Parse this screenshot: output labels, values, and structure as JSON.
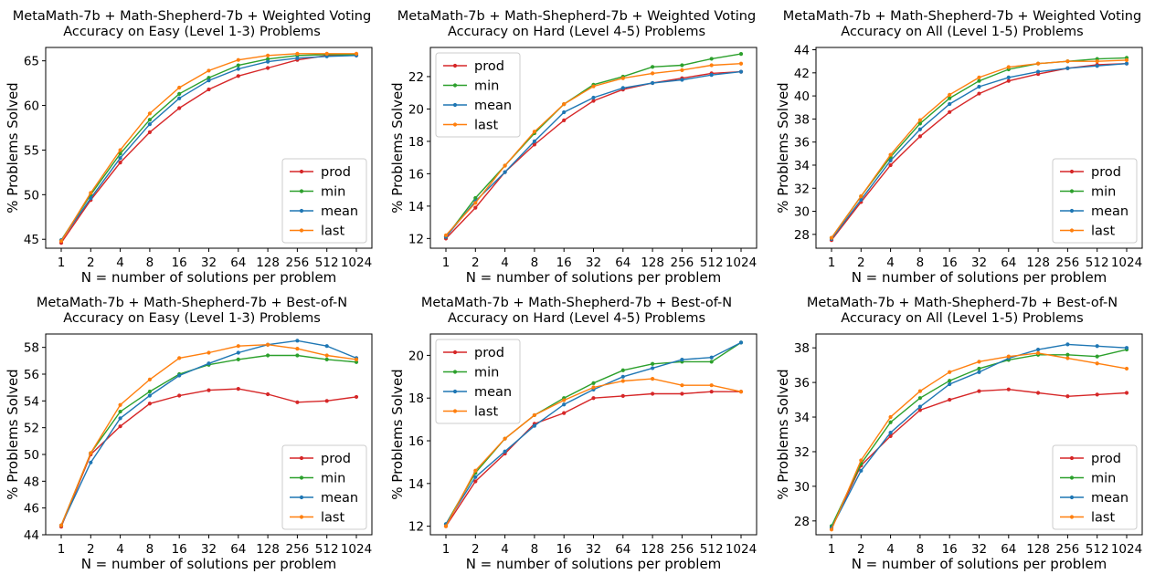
{
  "colors": {
    "prod": "#d62728",
    "min": "#2ca02c",
    "mean": "#1f77b4",
    "last": "#ff7f0e"
  },
  "chart_data": [
    {
      "type": "line",
      "title": [
        "MetaMath-7b + Math-Shepherd-7b + Weighted Voting",
        "Accuracy on Easy (Level 1-3) Problems"
      ],
      "xlabel": "N = number of solutions per problem",
      "ylabel": "% Problems Solved",
      "x": [
        "1",
        "2",
        "4",
        "8",
        "16",
        "32",
        "64",
        "128",
        "256",
        "512",
        "1024"
      ],
      "ylim": [
        44,
        66.5
      ],
      "yticks": [
        45,
        50,
        55,
        60,
        65
      ],
      "legend": "lower right",
      "series": [
        {
          "name": "prod",
          "color": "#d62728",
          "values": [
            44.6,
            49.4,
            53.6,
            57.0,
            59.7,
            61.8,
            63.3,
            64.2,
            65.1,
            65.6,
            65.6
          ]
        },
        {
          "name": "min",
          "color": "#2ca02c",
          "values": [
            44.9,
            50.0,
            54.6,
            58.4,
            61.3,
            63.1,
            64.5,
            65.2,
            65.6,
            65.7,
            65.7
          ]
        },
        {
          "name": "mean",
          "color": "#1f77b4",
          "values": [
            44.9,
            49.6,
            54.1,
            57.9,
            60.8,
            62.8,
            64.1,
            64.9,
            65.3,
            65.5,
            65.6
          ]
        },
        {
          "name": "last",
          "color": "#ff7f0e",
          "values": [
            44.8,
            50.2,
            55.0,
            59.1,
            62.0,
            63.9,
            65.1,
            65.6,
            65.8,
            65.8,
            65.8
          ]
        }
      ]
    },
    {
      "type": "line",
      "title": [
        "MetaMath-7b + Math-Shepherd-7b + Weighted Voting",
        "Accuracy on Hard (Level 4-5) Problems"
      ],
      "xlabel": "N = number of solutions per problem",
      "ylabel": "% Problems Solved",
      "x": [
        "1",
        "2",
        "4",
        "8",
        "16",
        "32",
        "64",
        "128",
        "256",
        "512",
        "1024"
      ],
      "ylim": [
        11.4,
        23.8
      ],
      "yticks": [
        12,
        14,
        16,
        18,
        20,
        22
      ],
      "legend": "upper left",
      "series": [
        {
          "name": "prod",
          "color": "#d62728",
          "values": [
            12.0,
            13.9,
            16.1,
            17.8,
            19.3,
            20.5,
            21.2,
            21.6,
            21.9,
            22.2,
            22.3
          ]
        },
        {
          "name": "min",
          "color": "#2ca02c",
          "values": [
            12.1,
            14.5,
            16.5,
            18.5,
            20.3,
            21.5,
            22.0,
            22.6,
            22.7,
            23.1,
            23.4
          ]
        },
        {
          "name": "mean",
          "color": "#1f77b4",
          "values": [
            12.1,
            14.3,
            16.1,
            18.0,
            19.8,
            20.7,
            21.3,
            21.6,
            21.8,
            22.1,
            22.3
          ]
        },
        {
          "name": "last",
          "color": "#ff7f0e",
          "values": [
            12.2,
            14.2,
            16.5,
            18.6,
            20.3,
            21.4,
            21.9,
            22.2,
            22.4,
            22.7,
            22.8
          ]
        }
      ]
    },
    {
      "type": "line",
      "title": [
        "MetaMath-7b + Math-Shepherd-7b + Weighted Voting",
        "Accuracy on All (Level 1-5) Problems"
      ],
      "xlabel": "N = number of solutions per problem",
      "ylabel": "% Problems Solved",
      "x": [
        "1",
        "2",
        "4",
        "8",
        "16",
        "32",
        "64",
        "128",
        "256",
        "512",
        "1024"
      ],
      "ylim": [
        26.8,
        44.2
      ],
      "yticks": [
        28,
        30,
        32,
        34,
        36,
        38,
        40,
        42,
        44
      ],
      "legend": "lower right",
      "series": [
        {
          "name": "prod",
          "color": "#d62728",
          "values": [
            27.5,
            30.8,
            34.0,
            36.5,
            38.6,
            40.2,
            41.3,
            41.9,
            42.4,
            42.7,
            42.8
          ]
        },
        {
          "name": "min",
          "color": "#2ca02c",
          "values": [
            27.7,
            31.3,
            34.7,
            37.6,
            39.8,
            41.3,
            42.3,
            42.8,
            43.0,
            43.2,
            43.3
          ]
        },
        {
          "name": "mean",
          "color": "#1f77b4",
          "values": [
            27.6,
            31.0,
            34.4,
            37.1,
            39.3,
            40.8,
            41.6,
            42.1,
            42.4,
            42.6,
            42.8
          ]
        },
        {
          "name": "last",
          "color": "#ff7f0e",
          "values": [
            27.7,
            31.3,
            34.9,
            37.9,
            40.1,
            41.6,
            42.5,
            42.8,
            43.0,
            43.0,
            43.1
          ]
        }
      ]
    },
    {
      "type": "line",
      "title": [
        "MetaMath-7b + Math-Shepherd-7b + Best-of-N",
        "Accuracy on Easy (Level 1-3) Problems"
      ],
      "xlabel": "N = number of solutions per problem",
      "ylabel": "% Problems Solved",
      "x": [
        "1",
        "2",
        "4",
        "8",
        "16",
        "32",
        "64",
        "128",
        "256",
        "512",
        "1024"
      ],
      "ylim": [
        44,
        59
      ],
      "yticks": [
        44,
        46,
        48,
        50,
        52,
        54,
        56,
        58
      ],
      "legend": "lower right",
      "series": [
        {
          "name": "prod",
          "color": "#d62728",
          "values": [
            44.6,
            50.0,
            52.1,
            53.8,
            54.4,
            54.8,
            54.9,
            54.5,
            53.9,
            54.0,
            54.3
          ]
        },
        {
          "name": "min",
          "color": "#2ca02c",
          "values": [
            44.7,
            50.1,
            53.2,
            54.7,
            56.0,
            56.7,
            57.1,
            57.4,
            57.4,
            57.1,
            56.9
          ]
        },
        {
          "name": "mean",
          "color": "#1f77b4",
          "values": [
            44.7,
            49.4,
            52.7,
            54.4,
            55.9,
            56.8,
            57.6,
            58.2,
            58.5,
            58.1,
            57.2
          ]
        },
        {
          "name": "last",
          "color": "#ff7f0e",
          "values": [
            44.7,
            50.1,
            53.7,
            55.6,
            57.2,
            57.6,
            58.1,
            58.2,
            57.9,
            57.4,
            57.1
          ]
        }
      ]
    },
    {
      "type": "line",
      "title": [
        "MetaMath-7b + Math-Shepherd-7b + Best-of-N",
        "Accuracy on Hard (Level 4-5) Problems"
      ],
      "xlabel": "N = number of solutions per problem",
      "ylabel": "% Problems Solved",
      "x": [
        "1",
        "2",
        "4",
        "8",
        "16",
        "32",
        "64",
        "128",
        "256",
        "512",
        "1024"
      ],
      "ylim": [
        11.6,
        21.0
      ],
      "yticks": [
        12,
        14,
        16,
        18,
        20
      ],
      "legend": "upper left",
      "series": [
        {
          "name": "prod",
          "color": "#d62728",
          "values": [
            12.0,
            14.1,
            15.4,
            16.8,
            17.3,
            18.0,
            18.1,
            18.2,
            18.2,
            18.3,
            18.3
          ]
        },
        {
          "name": "min",
          "color": "#2ca02c",
          "values": [
            12.1,
            14.5,
            16.1,
            17.2,
            18.0,
            18.7,
            19.3,
            19.6,
            19.7,
            19.7,
            20.6
          ]
        },
        {
          "name": "mean",
          "color": "#1f77b4",
          "values": [
            12.1,
            14.3,
            15.5,
            16.7,
            17.7,
            18.4,
            19.0,
            19.4,
            19.8,
            19.9,
            20.6
          ]
        },
        {
          "name": "last",
          "color": "#ff7f0e",
          "values": [
            12.0,
            14.6,
            16.1,
            17.2,
            17.9,
            18.5,
            18.8,
            18.9,
            18.6,
            18.6,
            18.3
          ]
        }
      ]
    },
    {
      "type": "line",
      "title": [
        "MetaMath-7b + Math-Shepherd-7b + Best-of-N",
        "Accuracy on All (Level 1-5) Problems"
      ],
      "xlabel": "N = number of solutions per problem",
      "ylabel": "% Problems Solved",
      "x": [
        "1",
        "2",
        "4",
        "8",
        "16",
        "32",
        "64",
        "128",
        "256",
        "512",
        "1024"
      ],
      "ylim": [
        27.2,
        38.8
      ],
      "yticks": [
        28,
        30,
        32,
        34,
        36,
        38
      ],
      "legend": "lower right",
      "series": [
        {
          "name": "prod",
          "color": "#d62728",
          "values": [
            27.6,
            31.2,
            32.9,
            34.4,
            35.0,
            35.5,
            35.6,
            35.4,
            35.2,
            35.3,
            35.4
          ]
        },
        {
          "name": "min",
          "color": "#2ca02c",
          "values": [
            27.7,
            31.3,
            33.7,
            35.1,
            36.1,
            36.8,
            37.3,
            37.6,
            37.6,
            37.5,
            37.9
          ]
        },
        {
          "name": "mean",
          "color": "#1f77b4",
          "values": [
            27.6,
            30.9,
            33.1,
            34.6,
            35.9,
            36.6,
            37.4,
            37.9,
            38.2,
            38.1,
            38.0
          ]
        },
        {
          "name": "last",
          "color": "#ff7f0e",
          "values": [
            27.5,
            31.5,
            34.0,
            35.5,
            36.6,
            37.2,
            37.5,
            37.7,
            37.4,
            37.1,
            36.8
          ]
        }
      ]
    }
  ]
}
